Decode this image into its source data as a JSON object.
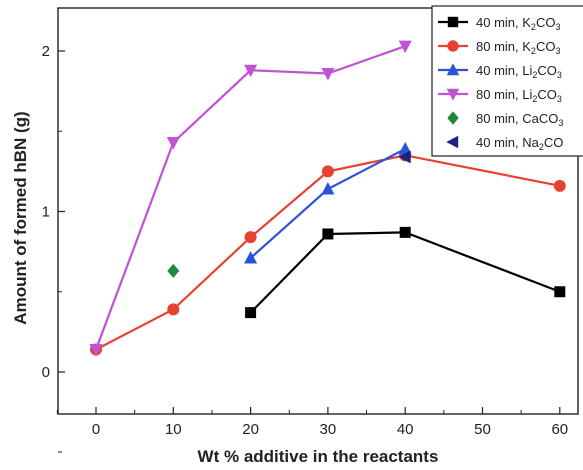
{
  "chart_data": {
    "type": "line",
    "xlabel": "Wt % additive in the reactants",
    "ylabel": "Amount of formed hBN (g)",
    "x_categories": [
      "0",
      "10",
      "20",
      "30",
      "40",
      "50",
      "60"
    ],
    "y_ticks": [
      "0",
      "1",
      "2"
    ],
    "ylim": [
      -0.25,
      2.3
    ],
    "grid": false,
    "legend_position": "top-right",
    "series": [
      {
        "name_main": "40 min, K",
        "name_sub": "2",
        "name_end": "CO",
        "name_sub2": "3",
        "marker": "square",
        "color": "#000000",
        "points": [
          [
            20,
            0.37
          ],
          [
            30,
            0.86
          ],
          [
            40,
            0.87
          ],
          [
            60,
            0.5
          ]
        ]
      },
      {
        "name_main": "80 min, K",
        "name_sub": "2",
        "name_end": "CO",
        "name_sub2": "3",
        "marker": "circle",
        "color": "#e8412f",
        "points": [
          [
            0,
            0.14
          ],
          [
            10,
            0.39
          ],
          [
            20,
            0.84
          ],
          [
            30,
            1.25
          ],
          [
            40,
            1.35
          ],
          [
            60,
            1.16
          ]
        ]
      },
      {
        "name_main": "40 min, Li",
        "name_sub": "2",
        "name_end": "CO",
        "name_sub2": "3",
        "marker": "triangle-up",
        "color": "#2b53d8",
        "points": [
          [
            20,
            0.71
          ],
          [
            30,
            1.14
          ],
          [
            40,
            1.39
          ]
        ]
      },
      {
        "name_main": "80 min, Li",
        "name_sub": "2",
        "name_end": "CO",
        "name_sub2": "3",
        "marker": "triangle-down",
        "color": "#c052d6",
        "points": [
          [
            0,
            0.14
          ],
          [
            10,
            1.43
          ],
          [
            20,
            1.88
          ],
          [
            30,
            1.86
          ],
          [
            40,
            2.03
          ]
        ]
      },
      {
        "name_main": "80 min, CaCO",
        "name_sub": "",
        "name_end": "",
        "name_sub2": "3",
        "marker": "diamond",
        "color": "#1f8a3a",
        "points": [
          [
            10,
            0.63
          ]
        ]
      },
      {
        "name_main": "40 min, Na",
        "name_sub": "2",
        "name_end": "CO",
        "name_sub2": "",
        "marker": "triangle-left",
        "color": "#1a237e",
        "points": [
          [
            40,
            1.34
          ]
        ]
      }
    ]
  }
}
